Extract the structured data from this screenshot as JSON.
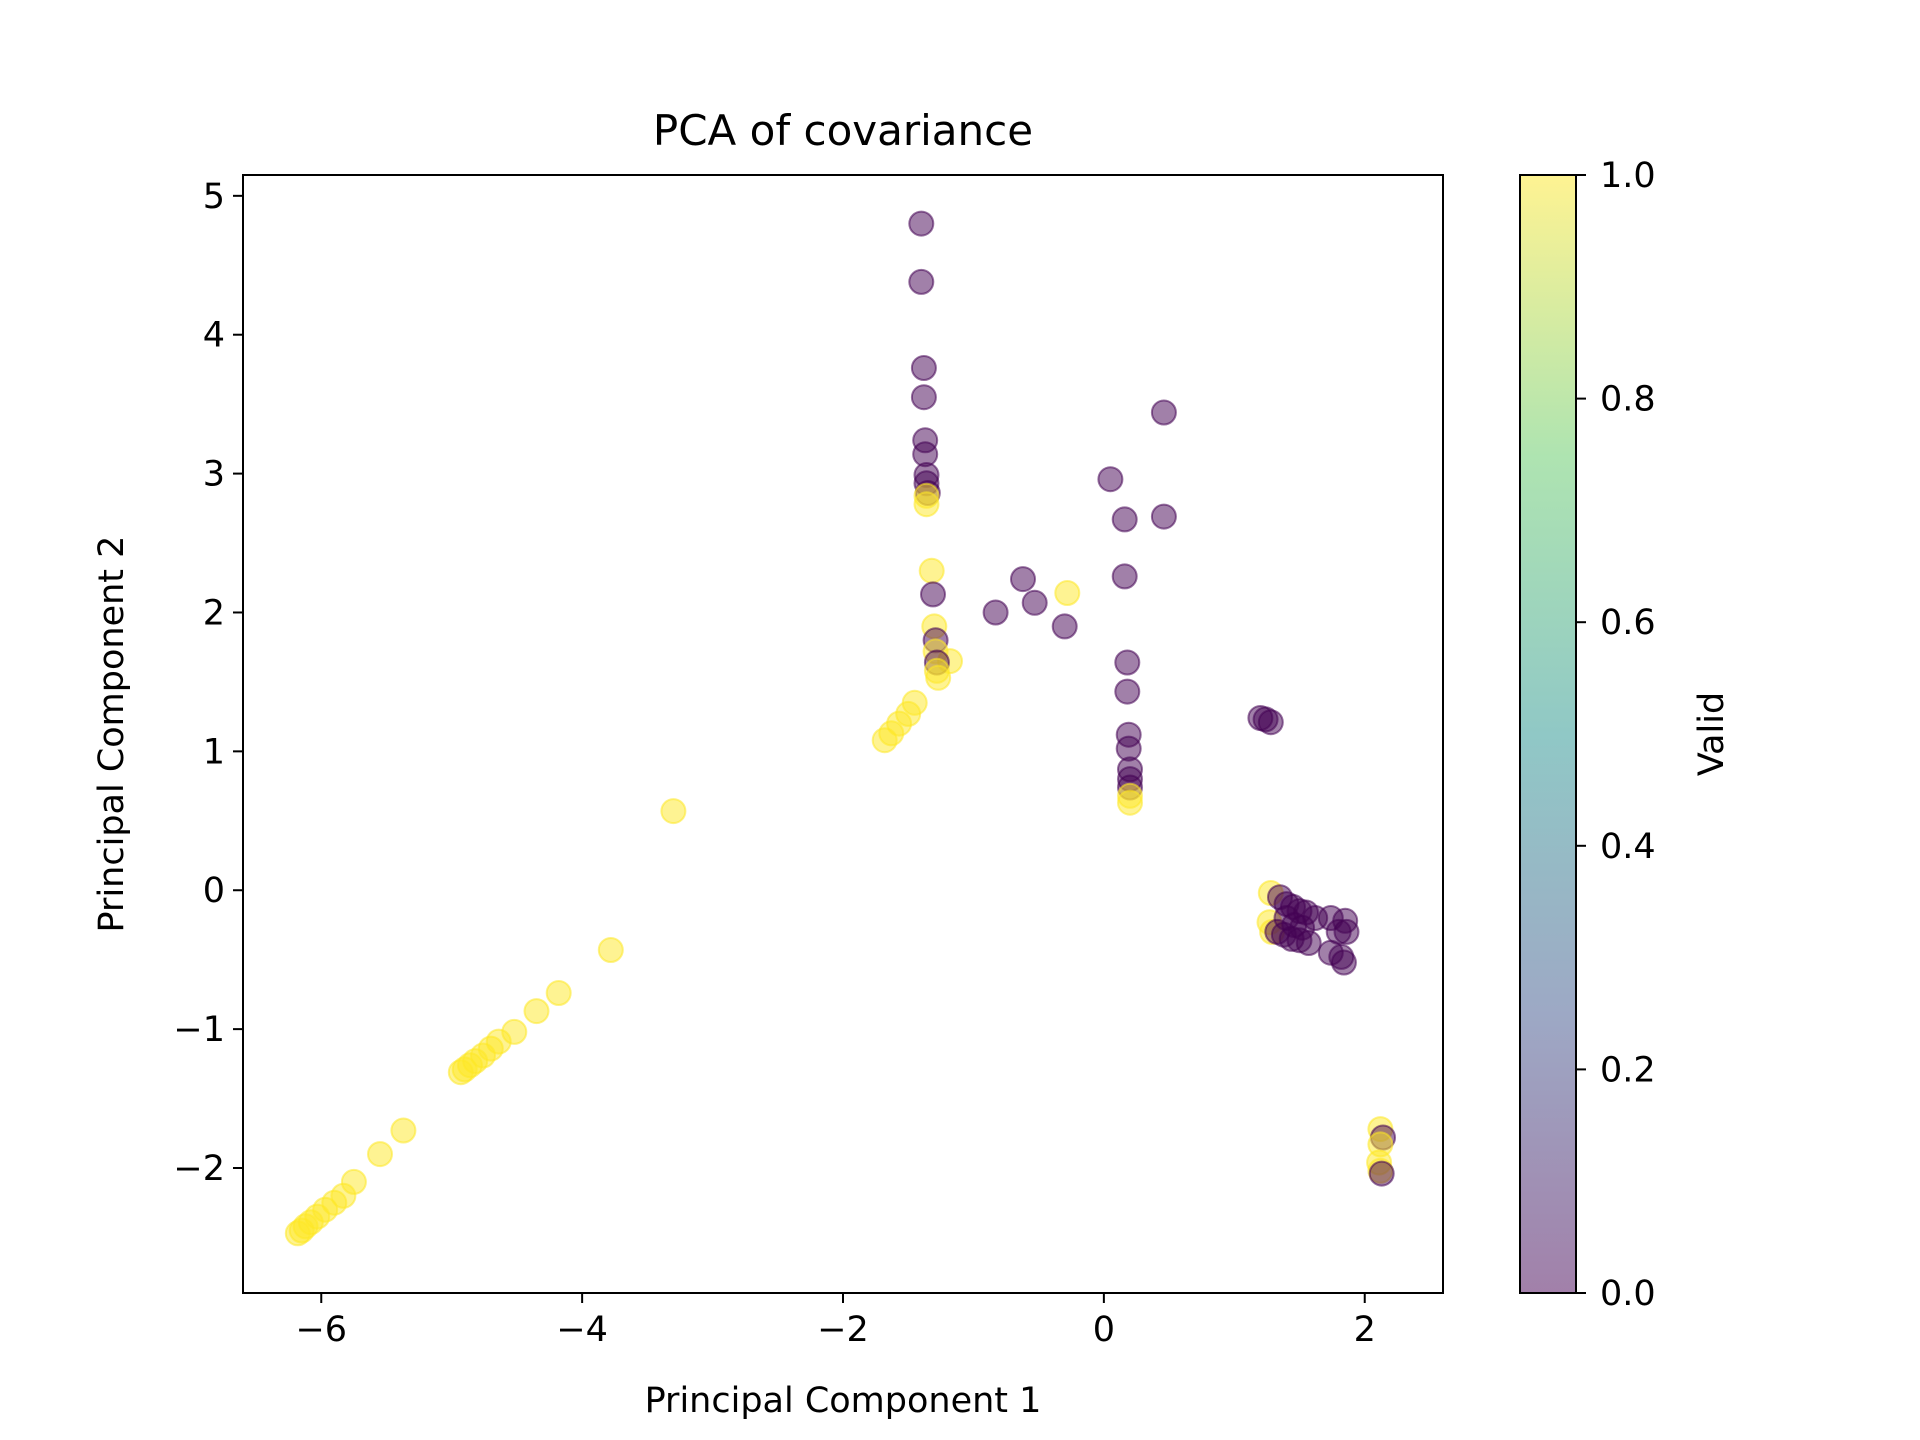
{
  "chart_data": {
    "type": "scatter",
    "title": "PCA of covariance",
    "xlabel": "Principal Component 1",
    "ylabel": "Principal Component 2",
    "xlim": [
      -6.6,
      2.6
    ],
    "ylim": [
      -2.9,
      5.15
    ],
    "xticks": [
      -6,
      -4,
      -2,
      0,
      2
    ],
    "yticks": [
      -2,
      -1,
      0,
      1,
      2,
      3,
      4,
      5
    ],
    "xtick_labels": [
      "−6",
      "−4",
      "−2",
      "0",
      "2"
    ],
    "ytick_labels": [
      "−2",
      "−1",
      "0",
      "1",
      "2",
      "3",
      "4",
      "5"
    ],
    "grid": false,
    "point_alpha": 0.5,
    "colorbar": {
      "label": "Valid",
      "range": [
        0.0,
        1.0
      ],
      "ticks": [
        0.0,
        0.2,
        0.4,
        0.6,
        0.8,
        1.0
      ],
      "tick_labels": [
        "0.0",
        "0.2",
        "0.4",
        "0.6",
        "0.8",
        "1.0"
      ],
      "colormap": "viridis",
      "colormap_stops": [
        "#440154",
        "#3b528b",
        "#21918c",
        "#5ec962",
        "#fde725"
      ]
    },
    "points": [
      {
        "x": -6.18,
        "y": -2.47,
        "c": 1
      },
      {
        "x": -6.15,
        "y": -2.45,
        "c": 1
      },
      {
        "x": -6.12,
        "y": -2.42,
        "c": 1
      },
      {
        "x": -6.08,
        "y": -2.39,
        "c": 1
      },
      {
        "x": -6.03,
        "y": -2.35,
        "c": 1
      },
      {
        "x": -5.97,
        "y": -2.3,
        "c": 1
      },
      {
        "x": -5.9,
        "y": -2.25,
        "c": 1
      },
      {
        "x": -5.83,
        "y": -2.2,
        "c": 1
      },
      {
        "x": -5.75,
        "y": -2.1,
        "c": 1
      },
      {
        "x": -5.55,
        "y": -1.9,
        "c": 1
      },
      {
        "x": -5.37,
        "y": -1.73,
        "c": 1
      },
      {
        "x": -4.93,
        "y": -1.31,
        "c": 1
      },
      {
        "x": -4.9,
        "y": -1.29,
        "c": 1
      },
      {
        "x": -4.86,
        "y": -1.26,
        "c": 1
      },
      {
        "x": -4.82,
        "y": -1.23,
        "c": 1
      },
      {
        "x": -4.76,
        "y": -1.19,
        "c": 1
      },
      {
        "x": -4.7,
        "y": -1.14,
        "c": 1
      },
      {
        "x": -4.64,
        "y": -1.09,
        "c": 1
      },
      {
        "x": -4.52,
        "y": -1.02,
        "c": 1
      },
      {
        "x": -4.35,
        "y": -0.87,
        "c": 1
      },
      {
        "x": -4.18,
        "y": -0.74,
        "c": 1
      },
      {
        "x": -3.78,
        "y": -0.43,
        "c": 1
      },
      {
        "x": -3.3,
        "y": 0.57,
        "c": 1
      },
      {
        "x": -1.68,
        "y": 1.08,
        "c": 1
      },
      {
        "x": -1.63,
        "y": 1.13,
        "c": 1
      },
      {
        "x": -1.57,
        "y": 1.2,
        "c": 1
      },
      {
        "x": -1.5,
        "y": 1.27,
        "c": 1
      },
      {
        "x": -1.45,
        "y": 1.35,
        "c": 1
      },
      {
        "x": -1.18,
        "y": 1.65,
        "c": 1
      },
      {
        "x": -1.4,
        "y": 4.8,
        "c": 0
      },
      {
        "x": -1.4,
        "y": 4.38,
        "c": 0
      },
      {
        "x": -1.38,
        "y": 3.76,
        "c": 0
      },
      {
        "x": -1.38,
        "y": 3.55,
        "c": 0
      },
      {
        "x": -1.37,
        "y": 3.24,
        "c": 0
      },
      {
        "x": -1.37,
        "y": 3.14,
        "c": 0
      },
      {
        "x": -1.36,
        "y": 2.99,
        "c": 0
      },
      {
        "x": -1.36,
        "y": 2.93,
        "c": 0
      },
      {
        "x": -1.35,
        "y": 2.86,
        "c": 0
      },
      {
        "x": -1.36,
        "y": 2.78,
        "c": 1
      },
      {
        "x": -1.36,
        "y": 2.84,
        "c": 1
      },
      {
        "x": -1.32,
        "y": 2.3,
        "c": 1
      },
      {
        "x": -1.31,
        "y": 2.13,
        "c": 0
      },
      {
        "x": -1.3,
        "y": 1.9,
        "c": 1
      },
      {
        "x": -1.29,
        "y": 1.8,
        "c": 0
      },
      {
        "x": -1.29,
        "y": 1.72,
        "c": 1
      },
      {
        "x": -1.28,
        "y": 1.64,
        "c": 0
      },
      {
        "x": -1.28,
        "y": 1.58,
        "c": 1
      },
      {
        "x": -1.27,
        "y": 1.53,
        "c": 1
      },
      {
        "x": -0.83,
        "y": 2.0,
        "c": 0
      },
      {
        "x": -0.62,
        "y": 2.24,
        "c": 0
      },
      {
        "x": -0.53,
        "y": 2.07,
        "c": 0
      },
      {
        "x": -0.3,
        "y": 1.9,
        "c": 0
      },
      {
        "x": -0.28,
        "y": 2.14,
        "c": 1
      },
      {
        "x": 0.05,
        "y": 2.96,
        "c": 0
      },
      {
        "x": 0.46,
        "y": 3.44,
        "c": 0
      },
      {
        "x": 0.46,
        "y": 2.69,
        "c": 0
      },
      {
        "x": 0.16,
        "y": 2.67,
        "c": 0
      },
      {
        "x": 0.16,
        "y": 2.26,
        "c": 0
      },
      {
        "x": 0.18,
        "y": 1.64,
        "c": 0
      },
      {
        "x": 0.18,
        "y": 1.43,
        "c": 0
      },
      {
        "x": 0.19,
        "y": 1.12,
        "c": 0
      },
      {
        "x": 0.19,
        "y": 1.02,
        "c": 0
      },
      {
        "x": 0.2,
        "y": 0.87,
        "c": 0
      },
      {
        "x": 0.2,
        "y": 0.8,
        "c": 0
      },
      {
        "x": 0.2,
        "y": 0.74,
        "c": 0
      },
      {
        "x": 0.2,
        "y": 0.68,
        "c": 1
      },
      {
        "x": 0.2,
        "y": 0.63,
        "c": 1
      },
      {
        "x": 1.2,
        "y": 1.24,
        "c": 0
      },
      {
        "x": 1.24,
        "y": 1.23,
        "c": 0
      },
      {
        "x": 1.28,
        "y": 1.21,
        "c": 0
      },
      {
        "x": 1.28,
        "y": -0.02,
        "c": 1
      },
      {
        "x": 1.27,
        "y": -0.23,
        "c": 1
      },
      {
        "x": 1.29,
        "y": -0.3,
        "c": 1
      },
      {
        "x": 1.35,
        "y": -0.05,
        "c": 0
      },
      {
        "x": 1.4,
        "y": -0.1,
        "c": 0
      },
      {
        "x": 1.45,
        "y": -0.12,
        "c": 0
      },
      {
        "x": 1.5,
        "y": -0.15,
        "c": 0
      },
      {
        "x": 1.55,
        "y": -0.16,
        "c": 0
      },
      {
        "x": 1.62,
        "y": -0.2,
        "c": 0
      },
      {
        "x": 1.4,
        "y": -0.2,
        "c": 0
      },
      {
        "x": 1.46,
        "y": -0.25,
        "c": 0
      },
      {
        "x": 1.52,
        "y": -0.27,
        "c": 0
      },
      {
        "x": 1.33,
        "y": -0.3,
        "c": 0
      },
      {
        "x": 1.38,
        "y": -0.32,
        "c": 0
      },
      {
        "x": 1.44,
        "y": -0.35,
        "c": 0
      },
      {
        "x": 1.5,
        "y": -0.36,
        "c": 0
      },
      {
        "x": 1.57,
        "y": -0.38,
        "c": 0
      },
      {
        "x": 1.74,
        "y": -0.2,
        "c": 0
      },
      {
        "x": 1.85,
        "y": -0.22,
        "c": 0
      },
      {
        "x": 1.8,
        "y": -0.3,
        "c": 0
      },
      {
        "x": 1.86,
        "y": -0.3,
        "c": 0
      },
      {
        "x": 1.74,
        "y": -0.45,
        "c": 0
      },
      {
        "x": 1.82,
        "y": -0.48,
        "c": 0
      },
      {
        "x": 1.84,
        "y": -0.52,
        "c": 0
      },
      {
        "x": 2.12,
        "y": -1.72,
        "c": 1
      },
      {
        "x": 2.14,
        "y": -1.78,
        "c": 0
      },
      {
        "x": 2.12,
        "y": -1.83,
        "c": 1
      },
      {
        "x": 2.11,
        "y": -1.96,
        "c": 1
      },
      {
        "x": 2.12,
        "y": -2.02,
        "c": 1
      },
      {
        "x": 2.13,
        "y": -2.04,
        "c": 0
      }
    ]
  }
}
